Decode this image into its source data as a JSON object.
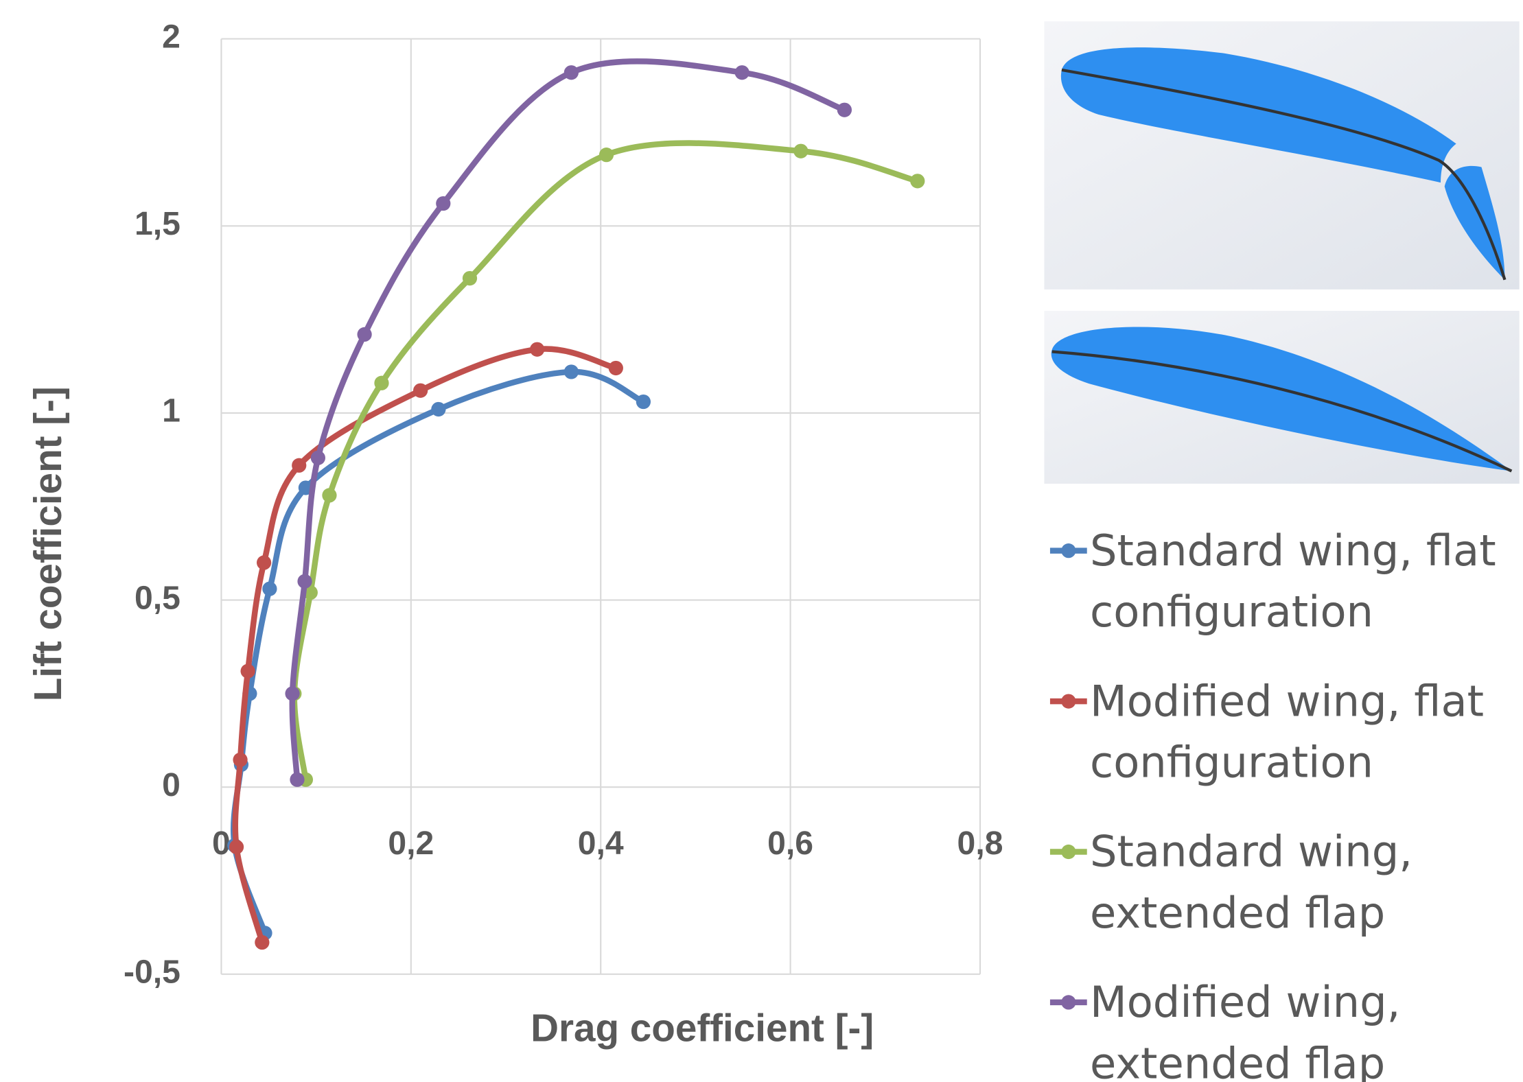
{
  "chart_data": {
    "type": "line",
    "x_label": "Drag coefficient [-]",
    "y_label": "Lift coefficient [-]",
    "xlim": [
      0,
      0.8
    ],
    "ylim": [
      -0.5,
      2
    ],
    "xticks": [
      0,
      {
        "value": 0.2,
        "label": "0,2"
      },
      {
        "value": 0.4,
        "label": "0,4"
      },
      {
        "value": 0.6,
        "label": "0,6"
      },
      {
        "value": 0.8,
        "label": "0,8"
      }
    ],
    "yticks": [
      {
        "value": -0.5,
        "label": "-0,5"
      },
      0,
      {
        "value": 0.5,
        "label": "0,5"
      },
      1,
      {
        "value": 1.5,
        "label": "1,5"
      },
      2
    ],
    "grid": true,
    "legend": "right",
    "series": [
      {
        "name": "Standard wing, flat configuration",
        "color": "#4f81bd",
        "x": [
          0.046,
          0.014,
          0.021,
          0.03,
          0.051,
          0.089,
          0.229,
          0.369,
          0.445
        ],
        "values": [
          -0.39,
          -0.156,
          0.06,
          0.25,
          0.53,
          0.8,
          1.01,
          1.11,
          1.03
        ]
      },
      {
        "name": "Modified wing, flat configuration",
        "color": "#c0504d",
        "x": [
          0.043,
          0.016,
          0.02,
          0.028,
          0.045,
          0.082,
          0.21,
          0.333,
          0.416
        ],
        "values": [
          -0.415,
          -0.16,
          0.073,
          0.31,
          0.6,
          0.86,
          1.06,
          1.17,
          1.12
        ]
      },
      {
        "name": "Standard wing, extended flap",
        "color": "#9bbb59",
        "x": [
          0.089,
          0.077,
          0.094,
          0.114,
          0.169,
          0.262,
          0.406,
          0.611,
          0.734
        ],
        "values": [
          0.02,
          0.25,
          0.52,
          0.78,
          1.08,
          1.36,
          1.69,
          1.7,
          1.62
        ]
      },
      {
        "name": "Modified wing, extended flap",
        "color": "#8064a2",
        "x": [
          0.08,
          0.075,
          0.088,
          0.102,
          0.151,
          0.234,
          0.369,
          0.549,
          0.657
        ],
        "values": [
          0.02,
          0.25,
          0.55,
          0.88,
          1.21,
          1.56,
          1.91,
          1.91,
          1.81
        ]
      }
    ]
  }
}
